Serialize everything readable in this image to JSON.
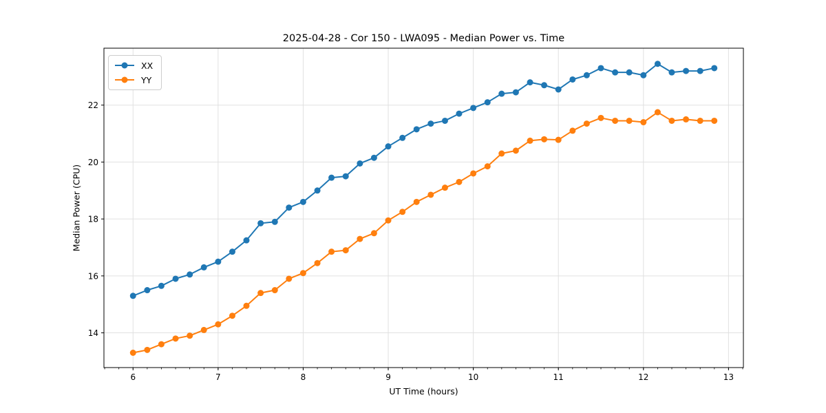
{
  "figure": {
    "title": "2025-04-28 - Cor 150 - LWA095 - Median Power vs. Time",
    "xlabel": "UT Time (hours)",
    "ylabel": "Median Power (CPU)"
  },
  "chart_data": {
    "type": "line",
    "title": "2025-04-28 - Cor 150 - LWA095 - Median Power vs. Time",
    "xlabel": "UT Time (hours)",
    "ylabel": "Median Power (CPU)",
    "xlim": [
      5.658,
      13.175
    ],
    "ylim": [
      12.78,
      24.0
    ],
    "xticks": [
      6,
      7,
      8,
      9,
      10,
      11,
      12,
      13
    ],
    "yticks": [
      14,
      16,
      18,
      20,
      22
    ],
    "minor_xtick_step": 0.16667,
    "grid": true,
    "grid_color": "#e0e0e0",
    "legend_position": "upper left",
    "marker": "circle",
    "x": [
      6.0,
      6.167,
      6.333,
      6.5,
      6.667,
      6.833,
      7.0,
      7.167,
      7.333,
      7.5,
      7.667,
      7.833,
      8.0,
      8.167,
      8.333,
      8.5,
      8.667,
      8.833,
      9.0,
      9.167,
      9.333,
      9.5,
      9.667,
      9.833,
      10.0,
      10.167,
      10.333,
      10.5,
      10.667,
      10.833,
      11.0,
      11.167,
      11.333,
      11.5,
      11.667,
      11.833,
      12.0,
      12.167,
      12.333,
      12.5,
      12.667,
      12.833
    ],
    "series": [
      {
        "name": "XX",
        "color": "#1f77b4",
        "values": [
          15.3,
          15.5,
          15.65,
          15.9,
          16.05,
          16.3,
          16.5,
          16.85,
          17.25,
          17.85,
          17.9,
          18.4,
          18.6,
          19.0,
          19.45,
          19.5,
          19.95,
          20.15,
          20.55,
          20.85,
          21.15,
          21.35,
          21.45,
          21.7,
          21.9,
          22.1,
          22.4,
          22.45,
          22.8,
          22.7,
          22.55,
          22.9,
          23.05,
          23.3,
          23.15,
          23.15,
          23.05,
          23.45,
          23.15,
          23.2,
          23.2,
          23.3
        ]
      },
      {
        "name": "YY",
        "color": "#ff7f0e",
        "values": [
          13.3,
          13.4,
          13.6,
          13.8,
          13.9,
          14.1,
          14.3,
          14.6,
          14.95,
          15.4,
          15.5,
          15.9,
          16.1,
          16.45,
          16.85,
          16.9,
          17.3,
          17.5,
          17.95,
          18.25,
          18.6,
          18.85,
          19.1,
          19.3,
          19.6,
          19.85,
          20.3,
          20.4,
          20.75,
          20.8,
          20.78,
          21.1,
          21.35,
          21.55,
          21.45,
          21.45,
          21.4,
          21.75,
          21.45,
          21.5,
          21.45,
          21.45
        ]
      }
    ]
  }
}
